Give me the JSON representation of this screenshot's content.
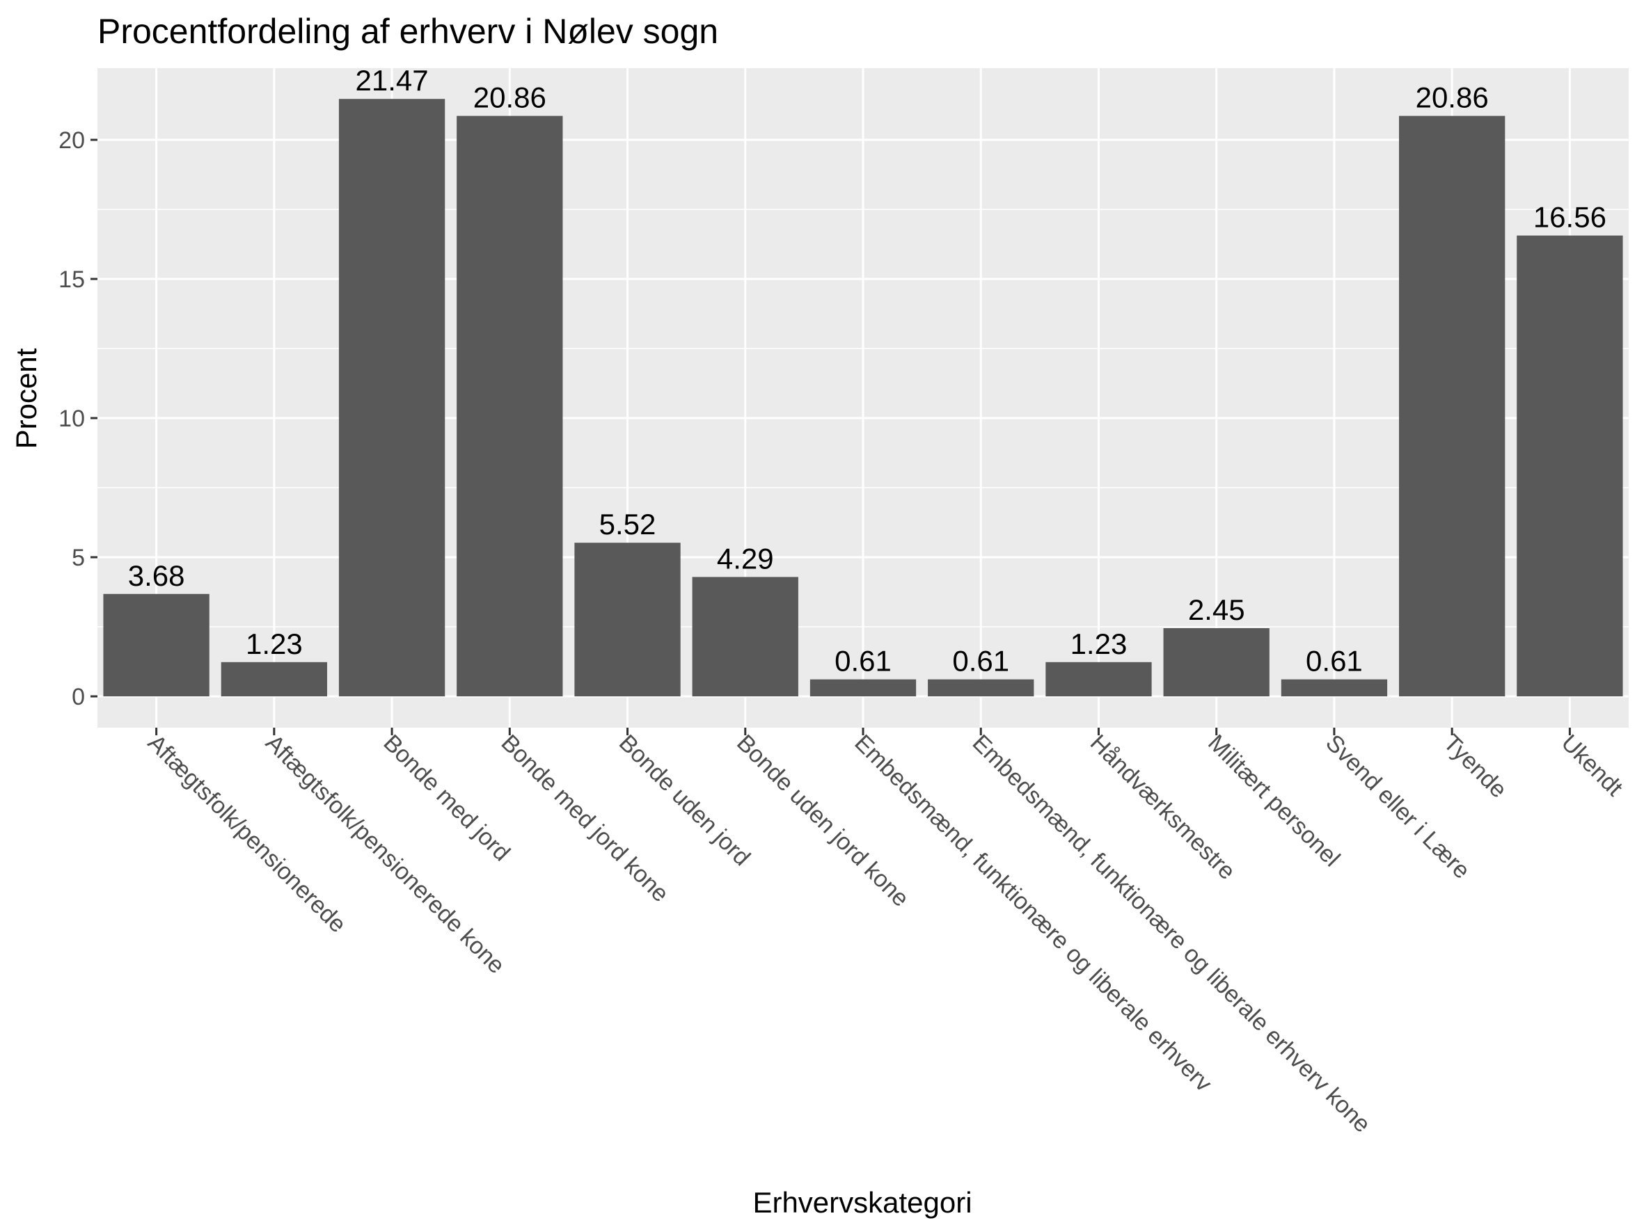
{
  "chart_data": {
    "type": "bar",
    "title": "Procentfordeling af erhverv i Nølev sogn",
    "xlabel": "Erhvervskategori",
    "ylabel": "Procent",
    "ylim": [
      0,
      22.5
    ],
    "yticks": [
      0,
      5,
      10,
      15,
      20
    ],
    "grid": true,
    "categories": [
      "Aftægtsfolk/pensionerede",
      "Aftægtsfolk/pensionerede kone",
      "Bonde med jord",
      "Bonde med jord kone",
      "Bonde uden jord",
      "Bonde uden jord kone",
      "Embedsmænd, funktionære og liberale erhverv",
      "Embedsmænd, funktionære og liberale erhverv kone",
      "Håndværksmestre",
      "Militært personel",
      "Svend eller i Lære",
      "Tyende",
      "Ukendt"
    ],
    "values": [
      3.68,
      1.23,
      21.47,
      20.86,
      5.52,
      4.29,
      0.61,
      0.61,
      1.23,
      2.45,
      0.61,
      20.86,
      16.56
    ],
    "labels": [
      "3.68",
      "1.23",
      "21.47",
      "20.86",
      "5.52",
      "4.29",
      "0.61",
      "0.61",
      "1.23",
      "2.45",
      "0.61",
      "20.86",
      "16.56"
    ],
    "colors": {
      "bar": "#595959",
      "panel": "#ebebeb",
      "grid": "#ffffff",
      "tick": "#333333"
    }
  }
}
